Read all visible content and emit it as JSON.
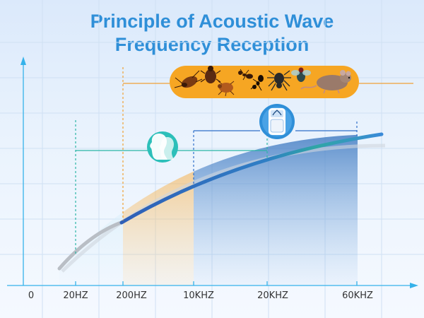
{
  "title": {
    "line1": "Principle of Acoustic Wave",
    "line2": "Frequency Reception"
  },
  "axis": {
    "origin_label": "0",
    "ticks": [
      "20HZ",
      "200HZ",
      "10KHZ",
      "20KHZ",
      "60KHZ"
    ]
  },
  "ranges": {
    "human_hearing": [
      "20HZ",
      "20KHZ"
    ],
    "repeller_output": [
      "10KHZ",
      "60KHZ"
    ],
    "pest_hearing": [
      "200HZ",
      null
    ]
  },
  "icons": {
    "human": "human-heads-icon",
    "device": "ultrasonic-repeller-icon",
    "pests": [
      "cockroach-icon",
      "beetle-icon",
      "bedbug-icon",
      "ant-icon",
      "ant-icon",
      "spider-icon",
      "fly-icon",
      "mouse-icon"
    ]
  },
  "colors": {
    "title": "#2f8fd8",
    "axis": "#35b2ea",
    "curve_blue": "#3a7fd1",
    "curve_teal": "#3aa6a8",
    "pest_bar": "#f6a623",
    "fill_orange": "#f3b24a",
    "fill_blue": "#3b78c7"
  }
}
